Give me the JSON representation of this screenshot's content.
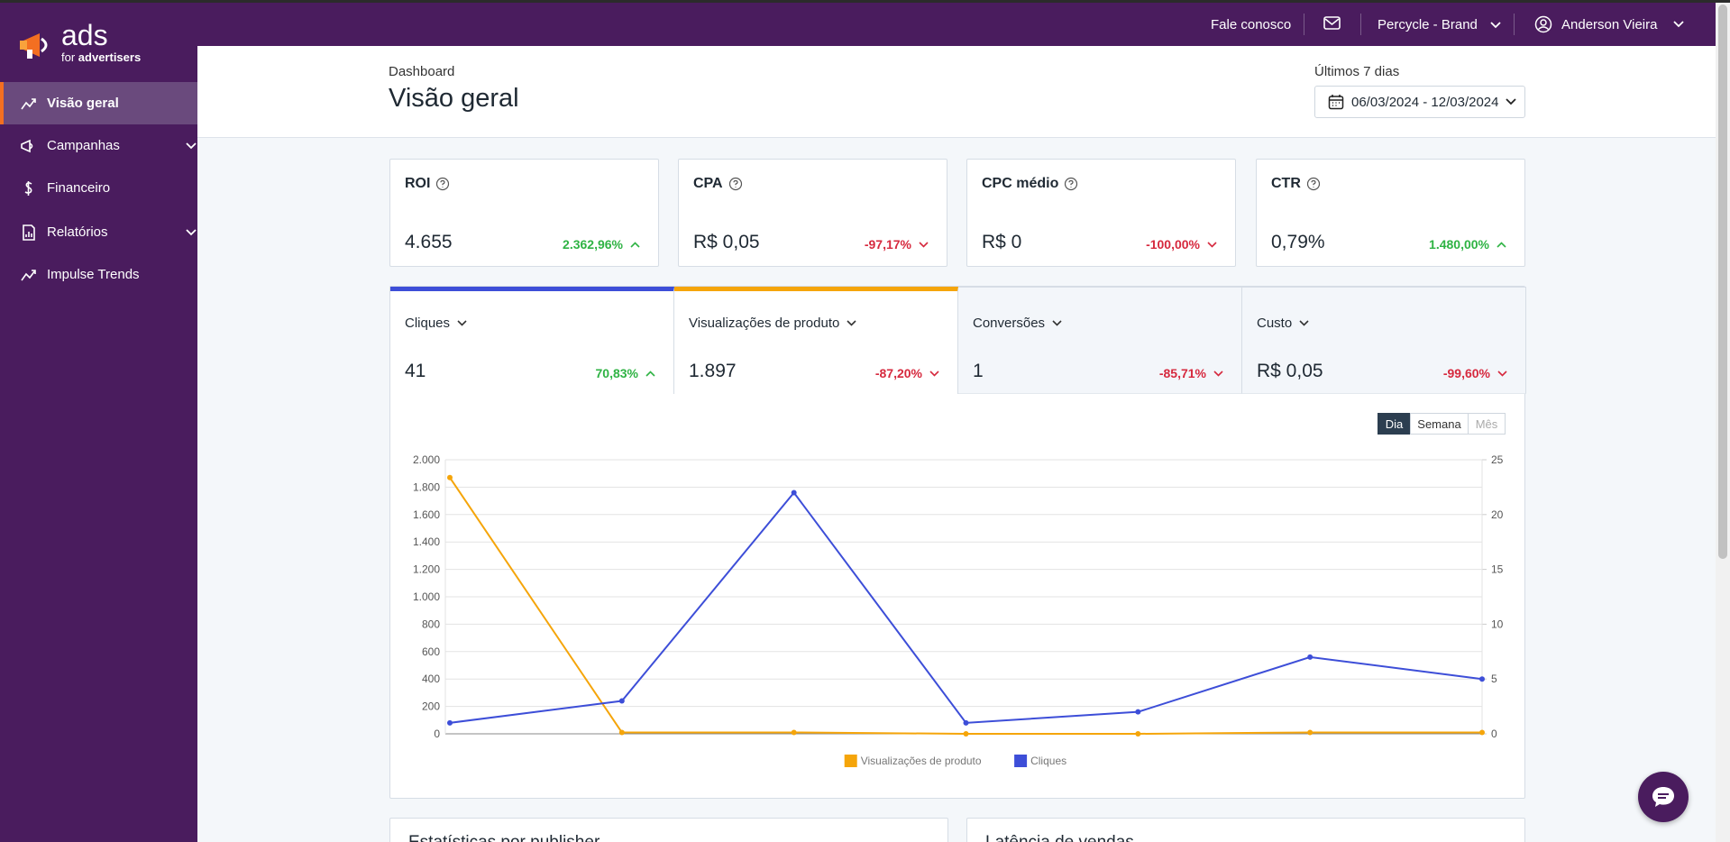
{
  "sidebar": {
    "brand": "ads",
    "brand_sub_1": "for",
    "brand_sub_2": "advertisers",
    "menu": [
      "Visão geral",
      "Campanhas",
      "Financeiro",
      "Relatórios",
      "Impulse Trends"
    ],
    "active": 0,
    "expandable": [
      false,
      true,
      false,
      true,
      false
    ]
  },
  "topbar": {
    "contact": "Fale conosco",
    "account": "Percycle - Brand",
    "user": "Anderson Vieira"
  },
  "header": {
    "breadcrumb": "Dashboard",
    "title": "Visão geral",
    "period_label": "Últimos 7 dias",
    "date_range": "06/03/2024 - 12/03/2024"
  },
  "kpis": [
    {
      "label": "ROI",
      "value": "4.655",
      "change": "2.362,96%",
      "trend": "up"
    },
    {
      "label": "CPA",
      "value": "R$ 0,05",
      "change": "-97,17%",
      "trend": "down"
    },
    {
      "label": "CPC médio",
      "value": "R$ 0",
      "change": "-100,00%",
      "trend": "down"
    },
    {
      "label": "CTR",
      "value": "0,79%",
      "change": "1.480,00%",
      "trend": "up"
    }
  ],
  "metrics": [
    {
      "label": "Cliques",
      "value": "41",
      "change": "70,83%",
      "trend": "up",
      "color": "#3d4ed8"
    },
    {
      "label": "Visualizações de produto",
      "value": "1.897",
      "change": "-87,20%",
      "trend": "down",
      "color": "#f5a50a"
    },
    {
      "label": "Conversões",
      "value": "1",
      "change": "-85,71%",
      "trend": "down",
      "color": null
    },
    {
      "label": "Custo",
      "value": "R$ 0,05",
      "change": "-99,60%",
      "trend": "down",
      "color": null
    }
  ],
  "chart_controls": {
    "options": [
      "Dia",
      "Semana",
      "Mês"
    ],
    "active": 0,
    "disabled": [
      false,
      false,
      true
    ]
  },
  "chart_data": {
    "type": "line",
    "categories": [
      null,
      null,
      null,
      null,
      null,
      null,
      null
    ],
    "series": [
      {
        "name": "Visualizações de produto",
        "color": "#f5a50a",
        "axis": "y",
        "values": [
          1870,
          10,
          10,
          0,
          0,
          10,
          10
        ]
      },
      {
        "name": "Cliques",
        "color": "#3d4ed8",
        "axis": "y2",
        "values": [
          1,
          3,
          22,
          1,
          2,
          7,
          5
        ]
      }
    ],
    "ylim": [
      0,
      2000
    ],
    "yticks": [
      0,
      200,
      400,
      600,
      800,
      {
        "value": 1000,
        "label": "1.000"
      },
      {
        "value": 1200,
        "label": "1.200"
      },
      {
        "value": 1400,
        "label": "1.400"
      },
      {
        "value": 1600,
        "label": "1.600"
      },
      {
        "value": 1800,
        "label": "1.800"
      },
      {
        "value": 2000,
        "label": "2.000"
      }
    ],
    "y2lim": [
      0,
      25
    ],
    "y2ticks": [
      0,
      5,
      10,
      15,
      20,
      25
    ],
    "grid": true,
    "legend": "bottom"
  },
  "panels": [
    "Estatísticas por publisher",
    "Latência de vendas"
  ]
}
